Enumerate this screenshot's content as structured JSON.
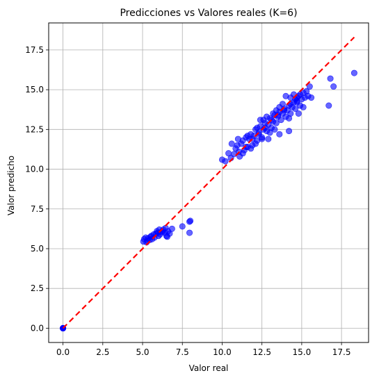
{
  "chart_data": {
    "type": "scatter",
    "title": "Predicciones vs Valores reales (K=6)",
    "xlabel": "Valor real",
    "ylabel": "Valor predicho",
    "xlim": [
      -0.9,
      19.2
    ],
    "ylim": [
      -0.9,
      19.2
    ],
    "xticks": [
      "0.0",
      "2.5",
      "5.0",
      "7.5",
      "10.0",
      "12.5",
      "15.0",
      "17.5"
    ],
    "yticks": [
      "0.0",
      "2.5",
      "5.0",
      "7.5",
      "10.0",
      "12.5",
      "15.0",
      "17.5"
    ],
    "grid": true,
    "point_color": "#0000ff",
    "line_color": "#ff0000",
    "reference_line": {
      "x": [
        0,
        18.3
      ],
      "y": [
        0,
        18.3
      ],
      "style": "dashed"
    },
    "series": [
      {
        "values": [
          [
            0,
            0
          ],
          [
            0,
            0
          ],
          [
            0,
            0
          ],
          [
            0,
            0
          ],
          [
            0,
            0
          ],
          [
            0,
            0
          ],
          [
            0,
            0
          ],
          [
            0,
            0
          ],
          [
            5.05,
            5.45
          ],
          [
            5.1,
            5.6
          ],
          [
            5.2,
            5.7
          ],
          [
            5.3,
            5.5
          ],
          [
            5.35,
            5.65
          ],
          [
            5.45,
            5.55
          ],
          [
            5.5,
            5.75
          ],
          [
            5.6,
            5.6
          ],
          [
            5.7,
            5.9
          ],
          [
            5.75,
            5.7
          ],
          [
            5.85,
            5.95
          ],
          [
            5.9,
            6.1
          ],
          [
            6.0,
            5.8
          ],
          [
            6.1,
            5.9
          ],
          [
            6.2,
            6.05
          ],
          [
            6.3,
            6.2
          ],
          [
            6.4,
            6.0
          ],
          [
            6.5,
            5.8
          ],
          [
            6.6,
            6.1
          ],
          [
            6.7,
            5.95
          ],
          [
            5.95,
            6.0
          ],
          [
            6.05,
            6.2
          ],
          [
            5.25,
            5.4
          ],
          [
            5.55,
            5.8
          ],
          [
            6.25,
            6.1
          ],
          [
            6.45,
            6.3
          ],
          [
            6.55,
            5.75
          ],
          [
            6.85,
            6.25
          ],
          [
            7.5,
            6.4
          ],
          [
            7.95,
            6.7
          ],
          [
            8.0,
            6.75
          ],
          [
            7.95,
            6.0
          ],
          [
            10.0,
            10.6
          ],
          [
            10.2,
            10.5
          ],
          [
            10.4,
            11.0
          ],
          [
            10.55,
            10.7
          ],
          [
            10.6,
            11.6
          ],
          [
            10.75,
            10.95
          ],
          [
            10.85,
            11.3
          ],
          [
            10.95,
            11.5
          ],
          [
            11.05,
            11.1
          ],
          [
            11.2,
            11.6
          ],
          [
            11.3,
            11.8
          ],
          [
            11.4,
            11.2
          ],
          [
            11.5,
            12.0
          ],
          [
            11.6,
            11.4
          ],
          [
            11.7,
            11.9
          ],
          [
            11.8,
            12.2
          ],
          [
            11.9,
            11.5
          ],
          [
            12.0,
            12.1
          ],
          [
            12.1,
            12.5
          ],
          [
            12.2,
            11.8
          ],
          [
            12.3,
            12.3
          ],
          [
            12.4,
            12.7
          ],
          [
            12.5,
            12.0
          ],
          [
            12.6,
            12.5
          ],
          [
            12.7,
            12.9
          ],
          [
            12.8,
            12.4
          ],
          [
            12.9,
            12.8
          ],
          [
            13.0,
            13.2
          ],
          [
            13.1,
            12.6
          ],
          [
            13.2,
            13.0
          ],
          [
            13.3,
            13.4
          ],
          [
            13.4,
            12.9
          ],
          [
            13.5,
            13.3
          ],
          [
            13.6,
            13.6
          ],
          [
            13.7,
            13.1
          ],
          [
            13.8,
            13.5
          ],
          [
            13.9,
            13.8
          ],
          [
            14.0,
            13.3
          ],
          [
            14.1,
            13.7
          ],
          [
            14.2,
            14.0
          ],
          [
            14.3,
            13.5
          ],
          [
            14.4,
            13.9
          ],
          [
            14.5,
            14.2
          ],
          [
            14.6,
            13.8
          ],
          [
            14.7,
            14.3
          ],
          [
            14.8,
            14.6
          ],
          [
            14.9,
            14.0
          ],
          [
            15.0,
            14.4
          ],
          [
            15.1,
            14.8
          ],
          [
            15.2,
            14.5
          ],
          [
            15.3,
            14.9
          ],
          [
            15.5,
            15.2
          ],
          [
            15.6,
            14.5
          ],
          [
            15.4,
            14.6
          ],
          [
            16.7,
            14.0
          ],
          [
            16.8,
            15.7
          ],
          [
            17.0,
            15.2
          ],
          [
            18.3,
            16.05
          ],
          [
            11.3,
            11.0
          ],
          [
            11.8,
            11.3
          ],
          [
            12.2,
            12.6
          ],
          [
            12.6,
            13.1
          ],
          [
            13.0,
            12.3
          ],
          [
            13.4,
            13.7
          ],
          [
            13.8,
            14.1
          ],
          [
            14.2,
            13.2
          ],
          [
            14.6,
            14.4
          ],
          [
            14.0,
            14.6
          ],
          [
            13.6,
            12.2
          ],
          [
            14.2,
            12.4
          ],
          [
            12.9,
            11.9
          ],
          [
            13.3,
            12.5
          ],
          [
            14.8,
            13.5
          ],
          [
            15.1,
            13.9
          ],
          [
            11.0,
            11.9
          ],
          [
            11.6,
            12.1
          ],
          [
            12.4,
            13.1
          ],
          [
            12.8,
            13.3
          ],
          [
            13.2,
            13.5
          ],
          [
            13.6,
            13.9
          ],
          [
            14.3,
            14.5
          ],
          [
            14.5,
            14.7
          ],
          [
            14.7,
            14.2
          ],
          [
            14.9,
            14.7
          ],
          [
            11.1,
            10.8
          ],
          [
            11.5,
            11.4
          ],
          [
            11.9,
            11.9
          ],
          [
            12.3,
            12.2
          ],
          [
            12.7,
            12.6
          ],
          [
            13.1,
            13.1
          ],
          [
            13.5,
            13.4
          ],
          [
            13.9,
            13.7
          ],
          [
            14.3,
            14.1
          ],
          [
            14.7,
            14.5
          ],
          [
            12.1,
            11.6
          ],
          [
            12.5,
            11.9
          ]
        ]
      }
    ]
  }
}
